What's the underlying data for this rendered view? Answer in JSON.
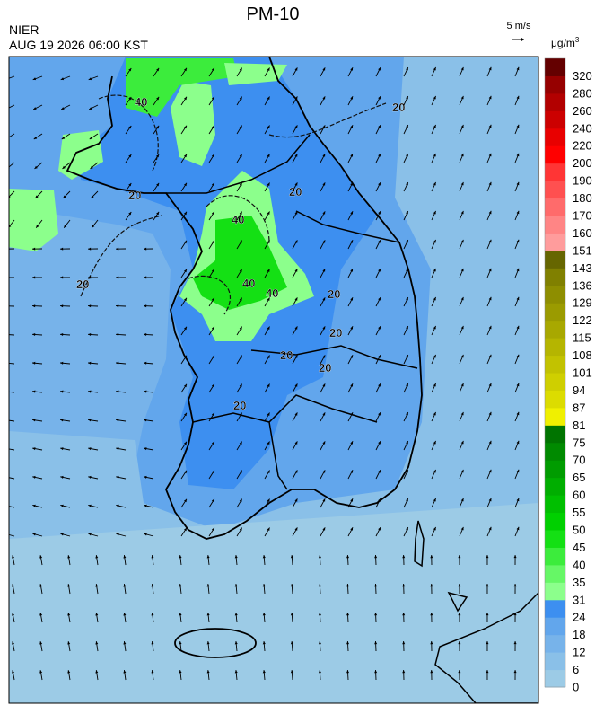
{
  "header": {
    "title": "PM-10",
    "agency": "NIER",
    "timestamp": "AUG 19 2026 06:00 KST",
    "wind_scale": "5 m/s",
    "unit": "μg/m",
    "unit_sup": "3"
  },
  "colorbar": {
    "levels": [
      0,
      6,
      12,
      18,
      24,
      31,
      35,
      40,
      45,
      50,
      55,
      60,
      65,
      70,
      75,
      81,
      87,
      94,
      101,
      108,
      115,
      122,
      129,
      136,
      143,
      151,
      160,
      170,
      180,
      190,
      200,
      220,
      240,
      260,
      280,
      320
    ],
    "colors": [
      "#9ccbe6",
      "#8ac0e8",
      "#77b3ea",
      "#62a6ec",
      "#3d8ff0",
      "#8cff8c",
      "#66f766",
      "#3cec3c",
      "#14e014",
      "#00d000",
      "#00bf00",
      "#00ae00",
      "#009c00",
      "#008a00",
      "#007400",
      "#f0f000",
      "#dcdc00",
      "#cfcf00",
      "#c2c200",
      "#b5b500",
      "#a8a800",
      "#9b9b00",
      "#8e8e00",
      "#808000",
      "#666600",
      "#ff9c9c",
      "#ff8585",
      "#ff6b6b",
      "#ff5050",
      "#ff3535",
      "#ff0000",
      "#e80000",
      "#cc0000",
      "#b20000",
      "#960000",
      "#640000"
    ]
  },
  "contour_labels": [
    "20",
    "20",
    "20",
    "20",
    "40",
    "40",
    "40",
    "20",
    "20",
    "20",
    "20",
    "40",
    "20"
  ]
}
